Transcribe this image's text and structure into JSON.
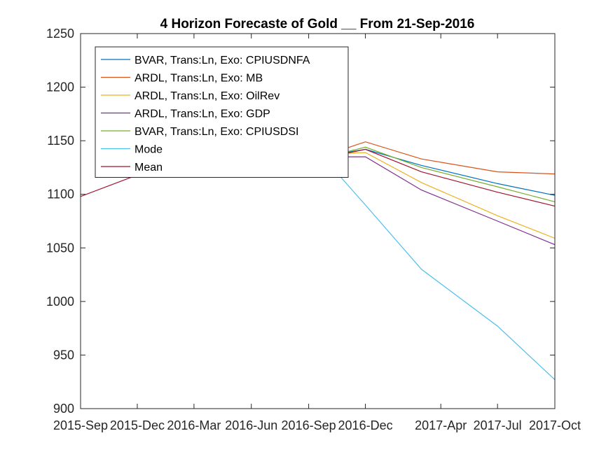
{
  "chart_data": {
    "type": "line",
    "title": "4 Horizon Forecaste of Gold __ From 21-Sep-2016",
    "xlabel": "",
    "ylabel": "",
    "x_tick_labels": [
      "2015-Sep",
      "2015-Dec",
      "2016-Mar",
      "2016-Jun",
      "2016-Sep",
      "2016-Dec",
      "2017-Apr",
      "2017-Jul",
      "2017-Oct"
    ],
    "y_tick_labels": [
      "900",
      "950",
      "1000",
      "1050",
      "1100",
      "1150",
      "1200",
      "1250"
    ],
    "ylim": [
      900,
      1250
    ],
    "x_tick_dates": [
      "2015-09-01",
      "2015-12-01",
      "2016-03-01",
      "2016-06-01",
      "2016-09-01",
      "2016-12-01",
      "2017-04-01",
      "2017-07-01",
      "2017-10-01"
    ],
    "xlim": [
      "2015-09-01",
      "2017-10-01"
    ],
    "grid": false,
    "legend_position": "top-left",
    "history": {
      "x": [
        "2015-09-01",
        "2015-12-01"
      ],
      "y": [
        1098,
        1118
      ]
    },
    "forecast_x": [
      "2016-10-21",
      "2016-12-01",
      "2017-03-01",
      "2017-07-01",
      "2017-10-01"
    ],
    "series": [
      {
        "name": "BVAR, Trans:Ln, Exo: CPIUSDNFA",
        "color": "#0072BD",
        "values": [
          1138,
          1142,
          1127,
          1110,
          1099
        ]
      },
      {
        "name": "ARDL, Trans:Ln, Exo: MB",
        "color": "#D95319",
        "values": [
          1141,
          1149,
          1133,
          1121,
          1119
        ]
      },
      {
        "name": "ARDL, Trans:Ln, Exo: OilRev",
        "color": "#EDB120",
        "values": [
          1138,
          1139,
          1111,
          1080,
          1059
        ]
      },
      {
        "name": "ARDL, Trans:Ln, Exo: GDP",
        "color": "#7E2F8E",
        "values": [
          1135,
          1135,
          1104,
          1075,
          1053
        ]
      },
      {
        "name": "BVAR, Trans:Ln, Exo: CPIUSDSI",
        "color": "#77AC30",
        "values": [
          1138,
          1144,
          1125,
          1107,
          1093
        ]
      },
      {
        "name": "Mode",
        "color": "#4DBEEE",
        "values": [
          1117,
          1090,
          1030,
          977,
          927
        ]
      },
      {
        "name": "Mean",
        "color": "#A2142F",
        "values": [
          1137,
          1142,
          1121,
          1102,
          1089
        ]
      }
    ]
  }
}
